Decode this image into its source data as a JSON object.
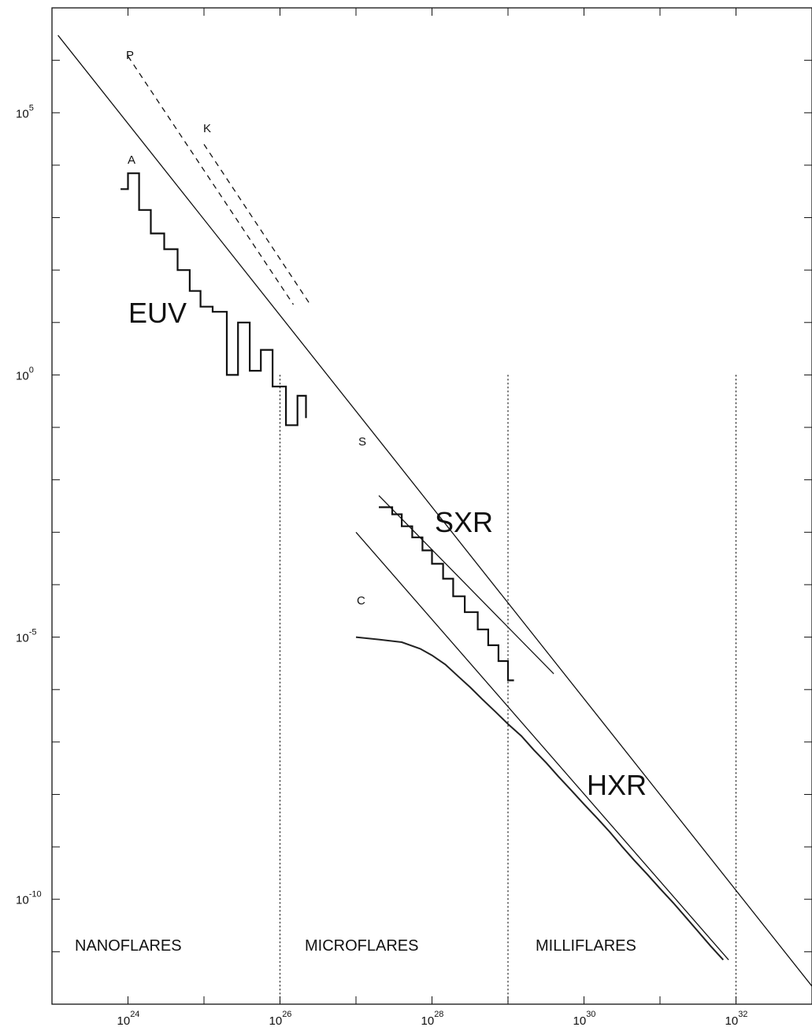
{
  "chart_data": {
    "type": "line",
    "x_scale": "log",
    "y_scale": "log",
    "xlim": [
      "1e23",
      "1e33"
    ],
    "ylim": [
      "1e-12",
      "1e7"
    ],
    "x_ticks": [
      {
        "base": "10",
        "exp": "24",
        "value": 1e+24
      },
      {
        "base": "10",
        "exp": "26",
        "value": 1e+26
      },
      {
        "base": "10",
        "exp": "28",
        "value": 1e+28
      },
      {
        "base": "10",
        "exp": "30",
        "value": 1e+30
      },
      {
        "base": "10",
        "exp": "32",
        "value": 1e+32
      }
    ],
    "y_ticks": [
      {
        "base": "10",
        "exp": "5",
        "value": 100000.0
      },
      {
        "base": "10",
        "exp": "0",
        "value": 1
      },
      {
        "base": "10",
        "exp": "-5",
        "value": 1e-05
      },
      {
        "base": "10",
        "exp": "-10",
        "value": 1e-10
      }
    ],
    "regions": [
      "NANOFLARES",
      "MICROFLARES",
      "MILLIFLARES"
    ],
    "region_boundaries_x": [
      1e+26,
      1e+29,
      1e+32
    ],
    "series_labels": [
      "EUV",
      "SXR",
      "HXR"
    ],
    "line_labels": [
      "P",
      "K",
      "A",
      "S",
      "C"
    ],
    "series": [
      {
        "label": "A",
        "kind": "fit-line",
        "points": [
          [
            1.2e+23,
            3000000.0
          ],
          [
            1e+33,
            2.2e-12
          ]
        ]
      },
      {
        "label": "P",
        "kind": "dashed",
        "points": [
          [
            1e+24,
            1200000.0
          ],
          [
            1.5e+26,
            22.0
          ]
        ]
      },
      {
        "label": "K",
        "kind": "dashed",
        "points": [
          [
            1e+25,
            25000.0
          ],
          [
            2.5e+26,
            22.0
          ]
        ]
      },
      {
        "label": "S",
        "kind": "fit-line",
        "points": [
          [
            2e+27,
            0.005
          ],
          [
            4e+29,
            2e-06
          ]
        ]
      },
      {
        "label": "C",
        "kind": "fit-line",
        "points": [
          [
            1e+27,
            0.001
          ],
          [
            8e+31,
            7e-12
          ]
        ]
      },
      {
        "label": "EUV",
        "kind": "histogram",
        "points": [
          [
            8e+23,
            3500.0
          ],
          [
            1e+24,
            3500.0
          ],
          [
            1e+24,
            7000.0
          ],
          [
            1.4e+24,
            7000.0
          ],
          [
            1.4e+24,
            1400.0
          ],
          [
            2e+24,
            1400.0
          ],
          [
            2e+24,
            500.0
          ],
          [
            3e+24,
            500.0
          ],
          [
            3e+24,
            250.0
          ],
          [
            4.5e+24,
            250.0
          ],
          [
            4.5e+24,
            100.0
          ],
          [
            6.5e+24,
            100.0
          ],
          [
            6.5e+24,
            40.0
          ],
          [
            9e+24,
            40.0
          ],
          [
            9e+24,
            20.0
          ],
          [
            1.3e+25,
            20.0
          ],
          [
            1.3e+25,
            16.0
          ],
          [
            2e+25,
            16.0
          ],
          [
            2e+25,
            1.0
          ],
          [
            2.8e+25,
            1.0
          ],
          [
            2.8e+25,
            10.0
          ],
          [
            4e+25,
            10.0
          ],
          [
            4e+25,
            1.2
          ],
          [
            5.6e+25,
            1.2
          ],
          [
            5.6e+25,
            3.0
          ],
          [
            8e+25,
            3.0
          ],
          [
            8e+25,
            0.6
          ],
          [
            1.2e+26,
            0.6
          ],
          [
            1.2e+26,
            0.11
          ],
          [
            1.7e+26,
            0.11
          ],
          [
            1.7e+26,
            0.4
          ],
          [
            2.2e+26,
            0.4
          ],
          [
            2.2e+26,
            0.15
          ]
        ]
      },
      {
        "label": "SXR",
        "kind": "histogram",
        "points": [
          [
            2e+27,
            0.003
          ],
          [
            3e+27,
            0.003
          ],
          [
            3e+27,
            0.0022
          ],
          [
            4e+27,
            0.0022
          ],
          [
            4e+27,
            0.0013
          ],
          [
            5.5e+27,
            0.0013
          ],
          [
            5.5e+27,
            0.0008
          ],
          [
            7.5e+27,
            0.0008
          ],
          [
            7.5e+27,
            0.00045
          ],
          [
            1e+28,
            0.00045
          ],
          [
            1e+28,
            0.00025
          ],
          [
            1.4e+28,
            0.00025
          ],
          [
            1.4e+28,
            0.00013
          ],
          [
            1.9e+28,
            0.00013
          ],
          [
            1.9e+28,
            6e-05
          ],
          [
            2.7e+28,
            6e-05
          ],
          [
            2.7e+28,
            3e-05
          ],
          [
            4e+28,
            3e-05
          ],
          [
            4e+28,
            1.4e-05
          ],
          [
            5.5e+28,
            1.4e-05
          ],
          [
            5.5e+28,
            7e-06
          ],
          [
            7.5e+28,
            7e-06
          ],
          [
            7.5e+28,
            3.5e-06
          ],
          [
            1e+29,
            3.5e-06
          ],
          [
            1e+29,
            1.5e-06
          ],
          [
            1.2e+29,
            1.5e-06
          ]
        ]
      },
      {
        "label": "HXR",
        "kind": "histogram",
        "points": [
          [
            1e+27,
            1e-05
          ],
          [
            2e+27,
            9e-06
          ],
          [
            4e+27,
            8e-06
          ],
          [
            7e+27,
            6e-06
          ],
          [
            1e+28,
            4.5e-06
          ],
          [
            1.5e+28,
            3e-06
          ],
          [
            2.2e+28,
            1.8e-06
          ],
          [
            3.2e+28,
            1.1e-06
          ],
          [
            4.6e+28,
            6.5e-07
          ],
          [
            6.8e+28,
            3.8e-07
          ],
          [
            1e+29,
            2.2e-07
          ],
          [
            1.5e+29,
            1.3e-07
          ],
          [
            2.2e+29,
            7e-08
          ],
          [
            3.2e+29,
            4e-08
          ],
          [
            4.6e+29,
            2.2e-08
          ],
          [
            6.8e+29,
            1.2e-08
          ],
          [
            1e+30,
            6.5e-09
          ],
          [
            1.5e+30,
            3.5e-09
          ],
          [
            2.2e+30,
            1.9e-09
          ],
          [
            3.2e+30,
            1e-09
          ],
          [
            4.6e+30,
            5.5e-10
          ],
          [
            6.8e+30,
            3e-10
          ],
          [
            1e+31,
            1.6e-10
          ],
          [
            1.5e+31,
            8.5e-11
          ],
          [
            2.2e+31,
            4.5e-11
          ],
          [
            3.2e+31,
            2.4e-11
          ],
          [
            4.6e+31,
            1.3e-11
          ],
          [
            6.8e+31,
            7e-12
          ]
        ]
      }
    ]
  }
}
